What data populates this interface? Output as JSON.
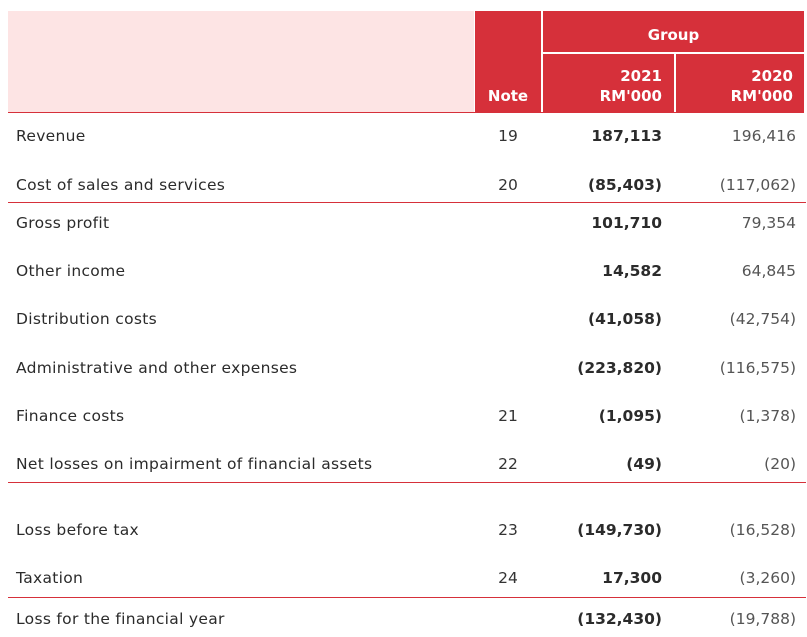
{
  "header": {
    "note_label": "Note",
    "group_label": "Group",
    "col_2021_year": "2021",
    "col_2021_unit": "RM'000",
    "col_2020_year": "2020",
    "col_2020_unit": "RM'000"
  },
  "rows": [
    {
      "label": "Revenue",
      "note": "19",
      "v2021": "187,113",
      "v2020": "196,416"
    },
    {
      "label": "Cost of sales and services",
      "note": "20",
      "v2021": "(85,403)",
      "v2020": "(117,062)"
    },
    {
      "label": "Gross profit",
      "note": "",
      "v2021": "101,710",
      "v2020": "79,354"
    },
    {
      "label": "Other income",
      "note": "",
      "v2021": "14,582",
      "v2020": "64,845"
    },
    {
      "label": "Distribution costs",
      "note": "",
      "v2021": "(41,058)",
      "v2020": "(42,754)"
    },
    {
      "label": "Administrative and other expenses",
      "note": "",
      "v2021": "(223,820)",
      "v2020": "(116,575)"
    },
    {
      "label": "Finance costs",
      "note": "21",
      "v2021": "(1,095)",
      "v2020": "(1,378)"
    },
    {
      "label": "Net losses on impairment of financial assets",
      "note": "22",
      "v2021": "(49)",
      "v2020": "(20)"
    },
    {
      "label": "Loss before tax",
      "note": "23",
      "v2021": "(149,730)",
      "v2020": "(16,528)"
    },
    {
      "label": "Taxation",
      "note": "24",
      "v2021": "17,300",
      "v2020": "(3,260)"
    },
    {
      "label": "Loss for the financial year",
      "note": "",
      "v2021": "(132,430)",
      "v2020": "(19,788)"
    }
  ]
}
